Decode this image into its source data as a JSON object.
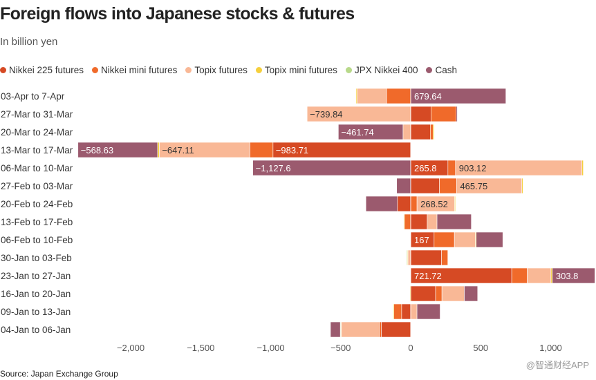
{
  "header": {
    "title": "Foreign flows into Japanese stocks & futures",
    "subtitle": "In billion yen"
  },
  "legend": [
    {
      "label": "Nikkei 225 futures",
      "color": "#d64a24"
    },
    {
      "label": "Nikkei mini futures",
      "color": "#f06a2a"
    },
    {
      "label": "Topix futures",
      "color": "#f9b896"
    },
    {
      "label": "Topix mini futures",
      "color": "#f5cf3c"
    },
    {
      "label": "JPX Nikkei 400",
      "color": "#b8d98a"
    },
    {
      "label": "Cash",
      "color": "#9b5a6e"
    }
  ],
  "footer": {
    "source": "Source: Japan Exchange Group",
    "watermark": "@智通财经APP"
  },
  "chart_data": {
    "type": "bar",
    "orientation": "horizontal",
    "stacked": true,
    "title": "Foreign flows into Japanese stocks & futures",
    "subtitle": "In billion yen",
    "xlim": [
      -2400,
      1320
    ],
    "x_ticks": [
      -2000,
      -1500,
      -1000,
      -500,
      0,
      500,
      1000
    ],
    "x_tick_labels": [
      "−2,000",
      "−1,500",
      "−1,000",
      "−500",
      "0",
      "500",
      "1,000"
    ],
    "grid": false,
    "legend_position": "top",
    "categories": [
      "03-Apr to 7-Apr",
      "27-Mar to 31-Mar",
      "20-Mar to 24-Mar",
      "13-Mar to 17-Mar",
      "06-Mar to 10-Mar",
      "27-Feb to 03-Mar",
      "20-Feb to 24-Feb",
      "13-Feb to 17-Feb",
      "06-Feb to 10-Feb",
      "30-Jan to 03-Feb",
      "23-Jan to 27-Jan",
      "16-Jan to 20-Jan",
      "09-Jan to 13-Jan",
      "04-Jan to 06-Jan"
    ],
    "series": [
      {
        "name": "Nikkei 225 futures",
        "color": "#d64a24",
        "values": [
          0,
          145,
          140,
          -983.71,
          265.8,
          205,
          -95,
          118,
          167,
          220,
          721.72,
          178,
          -65,
          -210
        ]
      },
      {
        "name": "Nikkei mini futures",
        "color": "#f06a2a",
        "values": [
          -172,
          180,
          20,
          -165,
          54,
          123,
          45,
          -45,
          145,
          45,
          110,
          45,
          -55,
          -15
        ]
      },
      {
        "name": "Topix futures",
        "color": "#f9b896",
        "values": [
          -210,
          -739.84,
          -55,
          -647.11,
          903.12,
          465.75,
          268.52,
          70,
          150,
          -20,
          170,
          160,
          45,
          -270
        ]
      },
      {
        "name": "Topix mini futures",
        "color": "#f5cf3c",
        "values": [
          -8,
          0,
          8,
          -12,
          10,
          8,
          6,
          -5,
          6,
          -5,
          10,
          -6,
          -6,
          -4
        ]
      },
      {
        "name": "JPX Nikkei 400",
        "color": "#b8d98a",
        "values": [
          0,
          0,
          0,
          0,
          0,
          0,
          0,
          0,
          0,
          -5,
          0,
          0,
          0,
          -4
        ]
      },
      {
        "name": "Cash",
        "color": "#9b5a6e",
        "values": [
          679.64,
          8,
          -461.74,
          -568.63,
          -1127.6,
          -100,
          -225,
          245,
          190,
          0,
          303.8,
          95,
          165,
          -70
        ]
      }
    ],
    "data_labels": [
      {
        "row": 0,
        "series": "Cash",
        "text": "679.64"
      },
      {
        "row": 1,
        "series": "Topix futures",
        "text": "−739.84"
      },
      {
        "row": 2,
        "series": "Cash",
        "text": "−461.74"
      },
      {
        "row": 3,
        "series": "Cash",
        "text": "−568.63"
      },
      {
        "row": 3,
        "series": "Topix futures",
        "text": "−647.11"
      },
      {
        "row": 3,
        "series": "Nikkei 225 futures",
        "text": "−983.71"
      },
      {
        "row": 4,
        "series": "Cash",
        "text": "−1,127.6"
      },
      {
        "row": 4,
        "series": "Nikkei 225 futures",
        "text": "265.8"
      },
      {
        "row": 4,
        "series": "Topix futures",
        "text": "903.12"
      },
      {
        "row": 5,
        "series": "Topix futures",
        "text": "465.75"
      },
      {
        "row": 6,
        "series": "Topix futures",
        "text": "268.52"
      },
      {
        "row": 8,
        "series": "Nikkei 225 futures",
        "text": "167"
      },
      {
        "row": 10,
        "series": "Nikkei 225 futures",
        "text": "721.72"
      },
      {
        "row": 10,
        "series": "Cash",
        "text": "303.8"
      }
    ]
  }
}
